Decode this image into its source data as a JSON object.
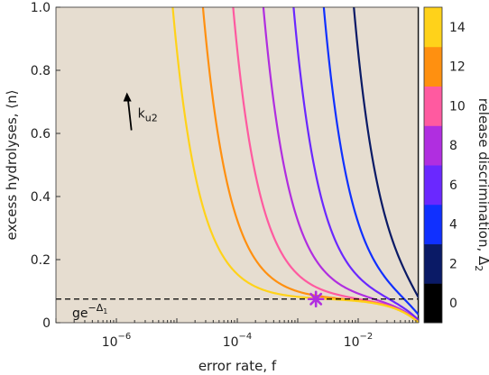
{
  "chart_data": {
    "type": "line",
    "xlabel": "error rate, f",
    "ylabel": "excess hydrolyses, ⟨n⟩",
    "xscale": "log",
    "xlim": [
      1e-07,
      0.1
    ],
    "ylim": [
      0,
      1.0
    ],
    "x_tick_values": [
      1e-06,
      0.0001,
      0.01
    ],
    "x_tick_labels": [
      {
        "base": "10",
        "exp": "−6"
      },
      {
        "base": "10",
        "exp": "−4"
      },
      {
        "base": "10",
        "exp": "−2"
      }
    ],
    "y_tick_values": [
      0,
      0.2,
      0.4,
      0.6,
      0.8,
      1.0
    ],
    "y_tick_labels": [
      "0",
      "0.2",
      "0.4",
      "0.6",
      "0.8",
      "1.0"
    ],
    "background_color": "#e6ddd0",
    "grid": false,
    "series_params": {
      "f_max": 0.1,
      "floor_value": 0.075
    },
    "series": [
      {
        "delta2": 0,
        "color": "#000000",
        "x_half": 0.1
      },
      {
        "delta2": 2,
        "color": "#0a1a66",
        "x_half": 0.0316
      },
      {
        "delta2": 4,
        "color": "#1030ff",
        "x_half": 0.01
      },
      {
        "delta2": 6,
        "color": "#6a28ff",
        "x_half": 0.00316
      },
      {
        "delta2": 8,
        "color": "#b02ee0",
        "x_half": 0.001
      },
      {
        "delta2": 10,
        "color": "#ff5aa0",
        "x_half": 0.000316
      },
      {
        "delta2": 12,
        "color": "#ff9010",
        "x_half": 0.0001
      },
      {
        "delta2": 14,
        "color": "#ffd21a",
        "x_half": 3.16e-05
      }
    ],
    "reference_line": {
      "y": 0.075,
      "label_main": "ge",
      "label_sup": "−Δ",
      "label_sup_sub": "1",
      "style": "dashed",
      "color": "#000000"
    },
    "marker": {
      "x": 0.002,
      "y": 0.075,
      "symbol": "asterisk",
      "color": "#b02ee0"
    },
    "arrow": {
      "x": 1.6e-06,
      "y_from": 0.61,
      "y_to": 0.73,
      "label_main": "k",
      "label_sub": "u2"
    },
    "colorbar": {
      "label_main": "release discrimination, Δ",
      "label_sub": "2",
      "tick_labels": [
        "0",
        "2",
        "4",
        "6",
        "8",
        "10",
        "12",
        "14"
      ],
      "colors": [
        "#000000",
        "#0a1a66",
        "#1030ff",
        "#6a28ff",
        "#b02ee0",
        "#ff5aa0",
        "#ff9010",
        "#ffd21a"
      ]
    }
  }
}
